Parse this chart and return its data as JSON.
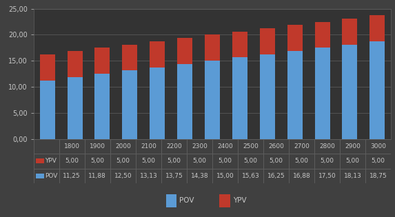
{
  "categories": [
    1800,
    1900,
    2000,
    2100,
    2200,
    2300,
    2400,
    2500,
    2600,
    2700,
    2800,
    2900,
    3000
  ],
  "pov": [
    11.25,
    11.88,
    12.5,
    13.13,
    13.75,
    14.38,
    15.0,
    15.63,
    16.25,
    16.88,
    17.5,
    18.13,
    18.75
  ],
  "ypv": [
    5.0,
    5.0,
    5.0,
    5.0,
    5.0,
    5.0,
    5.0,
    5.0,
    5.0,
    5.0,
    5.0,
    5.0,
    5.0
  ],
  "pov_color": "#5b9bd5",
  "ypv_color": "#c0392b",
  "background_color": "#404040",
  "plot_bg_color": "#333333",
  "text_color": "#c8c8c8",
  "grid_color": "#606060",
  "table_border_color": "#606060",
  "ylim": [
    0,
    25
  ],
  "yticks": [
    0,
    5.0,
    10.0,
    15.0,
    20.0,
    25.0
  ],
  "legend_pov": "POV",
  "legend_ypv": "YPV",
  "bar_width": 0.55
}
